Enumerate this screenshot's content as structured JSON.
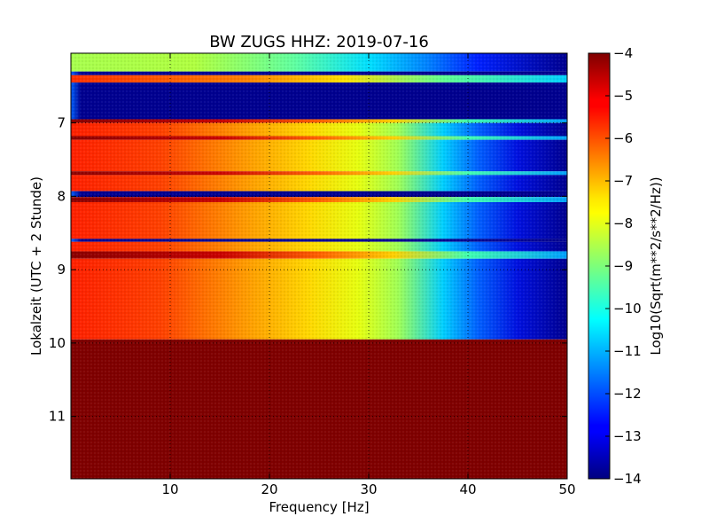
{
  "chart_data": {
    "type": "heatmap",
    "title": "BW ZUGS HHZ: 2019-07-16",
    "xlabel": "Frequency [Hz]",
    "ylabel": "Lokalzeit (UTC + 2 Stunde)",
    "xlim": [
      0,
      50
    ],
    "ylim": [
      6.05,
      11.85
    ],
    "y_inverted": true,
    "x_ticks": [
      10,
      20,
      30,
      40,
      50
    ],
    "x_tick_labels": [
      "10",
      "20",
      "30",
      "40",
      "50"
    ],
    "y_ticks": [
      7,
      8,
      9,
      10,
      11
    ],
    "y_tick_labels": [
      "7",
      "8",
      "9",
      "10",
      "11"
    ],
    "grid": true,
    "colormap": "jet",
    "colorbar": {
      "label": "Log10(Sqrt(m**2/s**2/Hz))",
      "range": [
        -14,
        -4
      ],
      "ticks": [
        -4,
        -5,
        -6,
        -7,
        -8,
        -9,
        -10,
        -11,
        -12,
        -13,
        -14
      ],
      "tick_labels": [
        "−4",
        "−5",
        "−6",
        "−7",
        "−8",
        "−9",
        "−10",
        "−11",
        "−12",
        "−13",
        "−14"
      ]
    },
    "rows": [
      {
        "y0": 6.05,
        "y1": 6.3,
        "profile": "lowamp"
      },
      {
        "y0": 6.3,
        "y1": 6.35,
        "profile": "gap"
      },
      {
        "y0": 6.35,
        "y1": 6.45,
        "profile": "loud"
      },
      {
        "y0": 6.45,
        "y1": 6.95,
        "profile": "gap"
      },
      {
        "y0": 6.95,
        "y1": 7.0,
        "profile": "hot"
      },
      {
        "y0": 7.0,
        "y1": 7.18,
        "profile": "normal"
      },
      {
        "y0": 7.18,
        "y1": 7.23,
        "profile": "hot"
      },
      {
        "y0": 7.23,
        "y1": 7.66,
        "profile": "normal"
      },
      {
        "y0": 7.66,
        "y1": 7.71,
        "profile": "hot"
      },
      {
        "y0": 7.71,
        "y1": 7.93,
        "profile": "normal"
      },
      {
        "y0": 7.93,
        "y1": 8.01,
        "profile": "gap"
      },
      {
        "y0": 8.01,
        "y1": 8.08,
        "profile": "hot"
      },
      {
        "y0": 8.08,
        "y1": 8.58,
        "profile": "normal"
      },
      {
        "y0": 8.58,
        "y1": 8.62,
        "profile": "gap"
      },
      {
        "y0": 8.62,
        "y1": 8.75,
        "profile": "normal"
      },
      {
        "y0": 8.75,
        "y1": 8.85,
        "profile": "hot"
      },
      {
        "y0": 8.85,
        "y1": 9.95,
        "profile": "normal"
      },
      {
        "y0": 9.95,
        "y1": 11.85,
        "profile": "saturated"
      }
    ]
  }
}
